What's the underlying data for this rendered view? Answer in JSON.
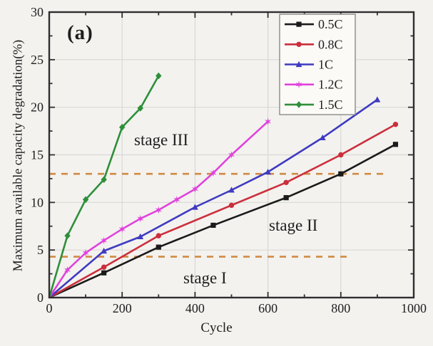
{
  "figure": {
    "panel_label": "(a)",
    "background_color": "#f3f2ef",
    "spine_color": "#2f2f2f",
    "grid_color": "#d9d8d4",
    "text_color": "#1e1e1e"
  },
  "annotations_text": {
    "stage1": "stage I",
    "stage2": "stage II",
    "stage3": "stage III"
  },
  "chart_data": {
    "type": "line",
    "title": "",
    "xlabel": "Cycle",
    "ylabel": "Maximum available capacity degradation(%)",
    "xlim": [
      0,
      1000
    ],
    "ylim": [
      0,
      30
    ],
    "x_major_ticks": [
      0,
      200,
      400,
      600,
      800,
      1000
    ],
    "x_minor_ticks": [
      100,
      300,
      500,
      700,
      900
    ],
    "y_major_ticks": [
      0,
      5,
      10,
      15,
      20,
      25,
      30
    ],
    "y_minor_ticks": [
      2.5,
      7.5,
      12.5,
      17.5,
      22.5,
      27.5
    ],
    "grid": true,
    "legend_position": "top-right",
    "series": [
      {
        "name": "0.5C",
        "color": "#1b1b1b",
        "marker": "square",
        "points": [
          [
            0,
            0
          ],
          [
            150,
            2.6
          ],
          [
            300,
            5.3
          ],
          [
            450,
            7.6
          ],
          [
            650,
            10.5
          ],
          [
            800,
            13.0
          ],
          [
            950,
            16.1
          ]
        ]
      },
      {
        "name": "0.8C",
        "color": "#cb2f3c",
        "marker": "circle",
        "points": [
          [
            0,
            0
          ],
          [
            150,
            3.2
          ],
          [
            300,
            6.5
          ],
          [
            500,
            9.7
          ],
          [
            650,
            12.1
          ],
          [
            800,
            15.0
          ],
          [
            950,
            18.2
          ]
        ]
      },
      {
        "name": "1C",
        "color": "#3f3bc1",
        "marker": "triangle-up",
        "points": [
          [
            0,
            0
          ],
          [
            150,
            4.9
          ],
          [
            250,
            6.4
          ],
          [
            400,
            9.5
          ],
          [
            500,
            11.3
          ],
          [
            600,
            13.2
          ],
          [
            750,
            16.8
          ],
          [
            900,
            20.8
          ]
        ]
      },
      {
        "name": "1.2C",
        "color": "#e043dd",
        "marker": "star",
        "points": [
          [
            0,
            0
          ],
          [
            50,
            2.9
          ],
          [
            100,
            4.7
          ],
          [
            150,
            6.0
          ],
          [
            200,
            7.2
          ],
          [
            250,
            8.3
          ],
          [
            300,
            9.2
          ],
          [
            350,
            10.3
          ],
          [
            400,
            11.4
          ],
          [
            450,
            13.1
          ],
          [
            500,
            15.0
          ],
          [
            600,
            18.5
          ]
        ]
      },
      {
        "name": "1.5C",
        "color": "#2e8f3a",
        "marker": "diamond",
        "points": [
          [
            0,
            0
          ],
          [
            50,
            6.5
          ],
          [
            100,
            10.3
          ],
          [
            150,
            12.4
          ],
          [
            200,
            17.9
          ],
          [
            250,
            19.9
          ],
          [
            300,
            23.3
          ]
        ]
      }
    ],
    "reference_lines": [
      {
        "y": 13.0,
        "x_start": 0,
        "x_end": 930,
        "style": "dashed",
        "color": "#d18a42"
      },
      {
        "y": 4.3,
        "x_start": 0,
        "x_end": 820,
        "style": "dashed",
        "color": "#d18a42"
      }
    ],
    "annotations": [
      {
        "text": "stage III",
        "x": 345,
        "y": 16.3
      },
      {
        "text": "stage II",
        "x": 690,
        "y": 7.4
      },
      {
        "text": "stage I",
        "x": 450,
        "y": 1.9
      },
      {
        "text": "(a)",
        "x": 95,
        "y": 27.2
      }
    ]
  }
}
